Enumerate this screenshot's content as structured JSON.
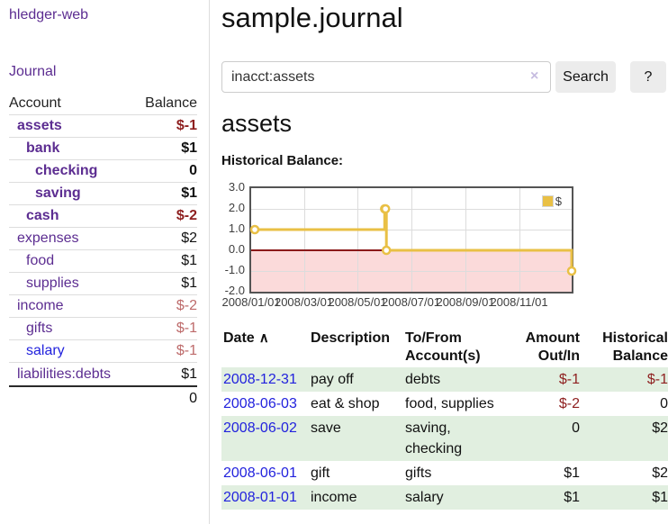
{
  "sidebar": {
    "app_title": "hledger-web",
    "journal_label": "Journal",
    "accounts": {
      "header": {
        "account": "Account",
        "balance": "Balance"
      },
      "rows": [
        {
          "name": "assets",
          "level": 1,
          "bold": true,
          "balance": "$-1",
          "balance_style": "negative-strong",
          "link_style": "purple"
        },
        {
          "name": "bank",
          "level": 2,
          "bold": true,
          "balance": "$1",
          "balance_style": "normal",
          "link_style": "purple"
        },
        {
          "name": "checking",
          "level": 3,
          "bold": true,
          "balance": "0",
          "balance_style": "normal",
          "link_style": "purple"
        },
        {
          "name": "saving",
          "level": 3,
          "bold": true,
          "balance": "$1",
          "balance_style": "normal",
          "link_style": "purple"
        },
        {
          "name": "cash",
          "level": 2,
          "bold": true,
          "balance": "$-2",
          "balance_style": "negative-strong",
          "link_style": "purple"
        },
        {
          "name": "expenses",
          "level": 1,
          "bold": false,
          "balance": "$2",
          "balance_style": "normal",
          "link_style": "purple"
        },
        {
          "name": "food",
          "level": 2,
          "bold": false,
          "balance": "$1",
          "balance_style": "normal",
          "link_style": "purple"
        },
        {
          "name": "supplies",
          "level": 2,
          "bold": false,
          "balance": "$1",
          "balance_style": "normal",
          "link_style": "purple"
        },
        {
          "name": "income",
          "level": 1,
          "bold": false,
          "balance": "$-2",
          "balance_style": "negative-muted",
          "link_style": "purple"
        },
        {
          "name": "gifts",
          "level": 2,
          "bold": false,
          "balance": "$-1",
          "balance_style": "negative-muted",
          "link_style": "purple"
        },
        {
          "name": "salary",
          "level": 2,
          "bold": false,
          "balance": "$-1",
          "balance_style": "negative-muted",
          "link_style": "blue"
        },
        {
          "name": "liabilities:debts",
          "level": 1,
          "bold": false,
          "balance": "$1",
          "balance_style": "normal",
          "link_style": "purple"
        }
      ],
      "total": "0"
    }
  },
  "main": {
    "title": "sample.journal",
    "search": {
      "value": "inacct:assets",
      "clear_icon": "×",
      "button_label": "Search",
      "help_label": "?"
    },
    "account_heading": "assets",
    "chart_title": "Historical Balance:",
    "register": {
      "headers": {
        "date": "Date",
        "sort_icon": "∧",
        "description": "Description",
        "account": "To/From\nAccount(s)",
        "amount": "Amount\nOut/In",
        "balance": "Historical\nBalance"
      },
      "rows": [
        {
          "date": "2008-12-31",
          "description": "pay off",
          "account": "debts",
          "amount": "$-1",
          "amount_negative": true,
          "balance": "$-1",
          "balance_negative": true,
          "highlight": true
        },
        {
          "date": "2008-06-03",
          "description": "eat & shop",
          "account": "food, supplies",
          "amount": "$-2",
          "amount_negative": true,
          "balance": "0",
          "balance_negative": false,
          "highlight": false
        },
        {
          "date": "2008-06-02",
          "description": "save",
          "account": "saving,\nchecking",
          "amount": "0",
          "amount_negative": false,
          "balance": "$2",
          "balance_negative": false,
          "highlight": true
        },
        {
          "date": "2008-06-01",
          "description": "gift",
          "account": "gifts",
          "amount": "$1",
          "amount_negative": false,
          "balance": "$2",
          "balance_negative": false,
          "highlight": false
        },
        {
          "date": "2008-01-01",
          "description": "income",
          "account": "salary",
          "amount": "$1",
          "amount_negative": false,
          "balance": "$1",
          "balance_negative": false,
          "highlight": true
        }
      ]
    }
  },
  "chart_data": {
    "type": "line",
    "step": true,
    "title": "Historical Balance:",
    "series": [
      {
        "name": "$",
        "color": "#e9c045",
        "points": [
          [
            "2008-01-01",
            1
          ],
          [
            "2008-06-01",
            2
          ],
          [
            "2008-06-02",
            2
          ],
          [
            "2008-06-03",
            0
          ],
          [
            "2008-12-31",
            -1
          ]
        ]
      }
    ],
    "x_range": [
      "2008-01-01",
      "2008-12-31"
    ],
    "ylim": [
      -2,
      3
    ],
    "yticks": [
      {
        "label": "3.0",
        "value": 3
      },
      {
        "label": "2.0",
        "value": 2
      },
      {
        "label": "1.0",
        "value": 1
      },
      {
        "label": "0.0",
        "value": 0
      },
      {
        "label": "-1.0",
        "value": -1
      },
      {
        "label": "-2.0",
        "value": -2
      }
    ],
    "xticks": [
      {
        "label": "2008/01/01",
        "date": "2008-01-01"
      },
      {
        "label": "2008/03/01",
        "date": "2008-03-01"
      },
      {
        "label": "2008/05/01",
        "date": "2008-05-01"
      },
      {
        "label": "2008/07/01",
        "date": "2008-07-01"
      },
      {
        "label": "2008/09/01",
        "date": "2008-09-01"
      },
      {
        "label": "2008/11/01",
        "date": "2008-11-01"
      }
    ],
    "legend": {
      "position": "top-right",
      "entries": [
        {
          "label": "$",
          "color": "#e9c045"
        }
      ]
    },
    "grid": true,
    "negative_region_color": "#fbdada",
    "zero_line_color": "#8b1a1a"
  },
  "colors": {
    "accent_purple": "#5c2d91",
    "link_blue": "#2222dd",
    "negative_strong": "#8e1f1f",
    "negative_muted": "#bd6a6a",
    "row_highlight_green": "#e1efe0",
    "series_yellow": "#e9c045",
    "chart_border": "#545454"
  }
}
